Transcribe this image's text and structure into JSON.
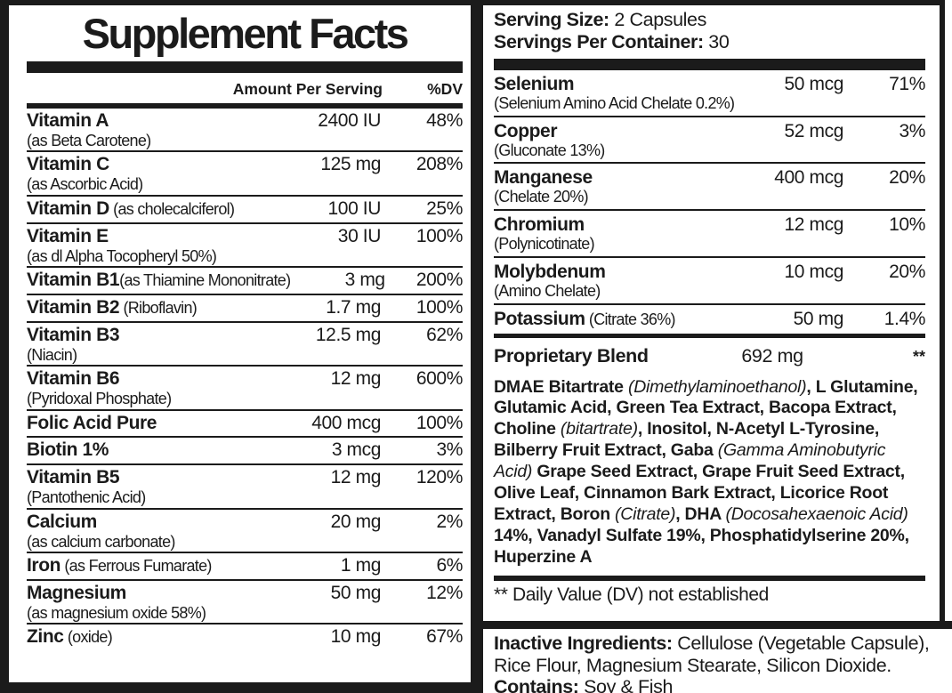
{
  "title": "Supplement Facts",
  "serving": {
    "size_label": "Serving Size:",
    "size_value": " 2 Capsules",
    "per_container_label": "Servings Per Container:",
    "per_container_value": " 30"
  },
  "table_headers": {
    "amount": "Amount Per Serving",
    "dv": "%DV"
  },
  "left_rows": [
    {
      "name": "Vitamin A",
      "desc": "(as Beta Carotene)",
      "inline": false,
      "amount": "2400 IU",
      "dv": "48%"
    },
    {
      "name": "Vitamin C",
      "desc": "(as Ascorbic Acid)",
      "inline": false,
      "amount": "125 mg",
      "dv": "208%"
    },
    {
      "name": "Vitamin D",
      "desc": " (as cholecalciferol)",
      "inline": true,
      "amount": "100 IU",
      "dv": "25%"
    },
    {
      "name": "Vitamin E",
      "desc": "(as dl Alpha Tocopheryl 50%)",
      "inline": false,
      "amount": "30 IU",
      "dv": "100%"
    },
    {
      "name": "Vitamin B1",
      "desc": "(as Thiamine Mononitrate)",
      "inline": true,
      "amount": "3 mg",
      "dv": "200%"
    },
    {
      "name": "Vitamin B2",
      "desc": " (Riboflavin)",
      "inline": true,
      "amount": "1.7 mg",
      "dv": "100%"
    },
    {
      "name": "Vitamin B3",
      "desc": "(Niacin)",
      "inline": false,
      "amount": "12.5 mg",
      "dv": "62%"
    },
    {
      "name": "Vitamin B6",
      "desc": "(Pyridoxal Phosphate)",
      "inline": false,
      "amount": "12 mg",
      "dv": "600%"
    },
    {
      "name": "Folic Acid Pure",
      "desc": "",
      "inline": true,
      "amount": "400 mcg",
      "dv": "100%"
    },
    {
      "name": "Biotin 1%",
      "desc": "",
      "inline": true,
      "amount": "3 mcg",
      "dv": "3%"
    },
    {
      "name": "Vitamin B5",
      "desc": "(Pantothenic Acid)",
      "inline": false,
      "amount": "12 mg",
      "dv": "120%"
    },
    {
      "name": "Calcium",
      "desc": "(as calcium carbonate)",
      "inline": false,
      "amount": "20 mg",
      "dv": "2%"
    },
    {
      "name": "Iron",
      "desc": " (as Ferrous Fumarate)",
      "inline": true,
      "amount": "1 mg",
      "dv": "6%"
    },
    {
      "name": "Magnesium",
      "desc": "(as magnesium oxide 58%)",
      "inline": false,
      "amount": "50 mg",
      "dv": "12%"
    },
    {
      "name": "Zinc",
      "desc": " (oxide)",
      "inline": true,
      "amount": "10 mg",
      "dv": "67%"
    }
  ],
  "right_rows": [
    {
      "name": "Selenium",
      "desc": "(Selenium Amino Acid Chelate 0.2%)",
      "inline": false,
      "amount": "50 mcg",
      "dv": "71%"
    },
    {
      "name": "Copper",
      "desc": "(Gluconate 13%)",
      "inline": false,
      "amount": "52 mcg",
      "dv": "3%"
    },
    {
      "name": "Manganese",
      "desc": "(Chelate 20%)",
      "inline": false,
      "amount": "400 mcg",
      "dv": "20%"
    },
    {
      "name": "Chromium",
      "desc": "(Polynicotinate)",
      "inline": false,
      "amount": "12 mcg",
      "dv": "10%"
    },
    {
      "name": "Molybdenum",
      "desc": "(Amino Chelate)",
      "inline": false,
      "amount": "10 mcg",
      "dv": "20%"
    },
    {
      "name": "Potassium",
      "desc": " (Citrate 36%)",
      "inline": true,
      "amount": "50 mg",
      "dv": "1.4%"
    }
  ],
  "proprietary_blend": {
    "name": "Proprietary Blend",
    "amount": "692 mg",
    "dv": "**",
    "segments": [
      {
        "text": "DMAE Bitartrate ",
        "italic": false
      },
      {
        "text": "(Dimethylaminoethanol)",
        "italic": true
      },
      {
        "text": ", L Glutamine, Glutamic Acid, Green Tea Extract, Bacopa Extract, Choline ",
        "italic": false
      },
      {
        "text": "(bitartrate)",
        "italic": true
      },
      {
        "text": ", Inositol, N-Acetyl L-Tyrosine, Bilberry Fruit Extract, Gaba ",
        "italic": false
      },
      {
        "text": "(Gamma Aminobutyric Acid)",
        "italic": true
      },
      {
        "text": " Grape Seed Extract, Grape Fruit Seed Extract, Olive Leaf, Cinnamon Bark Extract, Licorice Root Extract, Boron ",
        "italic": false
      },
      {
        "text": "(Citrate)",
        "italic": true
      },
      {
        "text": ", DHA ",
        "italic": false
      },
      {
        "text": "(Docosahexaenoic Acid)",
        "italic": true
      },
      {
        "text": " 14%, Vanadyl Sulfate 19%, Phosphatidylserine 20%, Huperzine A",
        "italic": false
      }
    ]
  },
  "footnote": "** Daily Value (DV) not established",
  "inactive": {
    "label": "Inactive Ingredients:",
    "text": " Cellulose (Vegetable Capsule), Rice Flour, Magnesium Stearate, Silicon Dioxide.",
    "contains_label": "Contains:",
    "contains_text": " Soy & Fish"
  },
  "colors": {
    "ink": "#1b1b1b",
    "background": "#ffffff"
  }
}
